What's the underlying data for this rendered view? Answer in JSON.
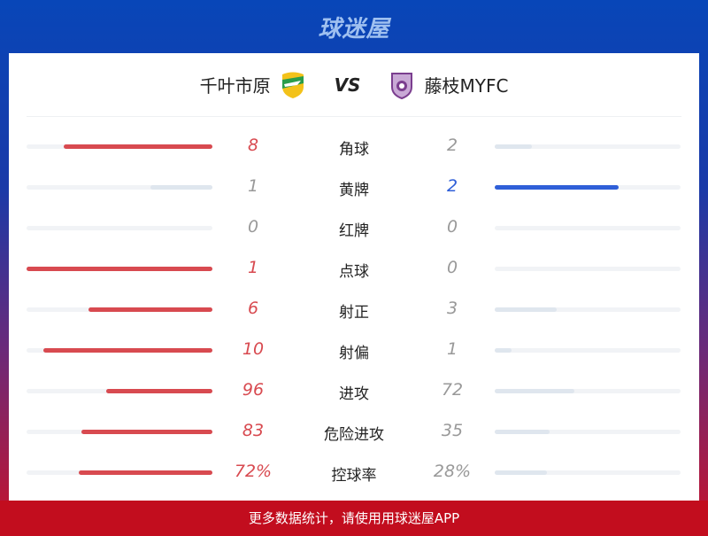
{
  "brand": "球迷屋",
  "match": {
    "home": "千叶市原",
    "vs": "VS",
    "away": "藤枝MYFC"
  },
  "colors": {
    "home": "#d84a50",
    "away": "#2f5fd8",
    "inactive": "#dfe6ee",
    "track": "#f1f3f6"
  },
  "stats": [
    {
      "label": "角球",
      "home": "8",
      "away": "2",
      "h": 8,
      "a": 2
    },
    {
      "label": "黄牌",
      "home": "1",
      "away": "2",
      "h": 1,
      "a": 2
    },
    {
      "label": "红牌",
      "home": "0",
      "away": "0",
      "h": 0,
      "a": 0
    },
    {
      "label": "点球",
      "home": "1",
      "away": "0",
      "h": 1,
      "a": 0
    },
    {
      "label": "射正",
      "home": "6",
      "away": "3",
      "h": 6,
      "a": 3
    },
    {
      "label": "射偏",
      "home": "10",
      "away": "1",
      "h": 10,
      "a": 1
    },
    {
      "label": "进攻",
      "home": "96",
      "away": "72",
      "h": 96,
      "a": 72
    },
    {
      "label": "危险进攻",
      "home": "83",
      "away": "35",
      "h": 83,
      "a": 35
    },
    {
      "label": "控球率",
      "home": "72%",
      "away": "28%",
      "h": 72,
      "a": 28
    }
  ],
  "footer": "更多数据统计，请使用用球迷屋APP"
}
